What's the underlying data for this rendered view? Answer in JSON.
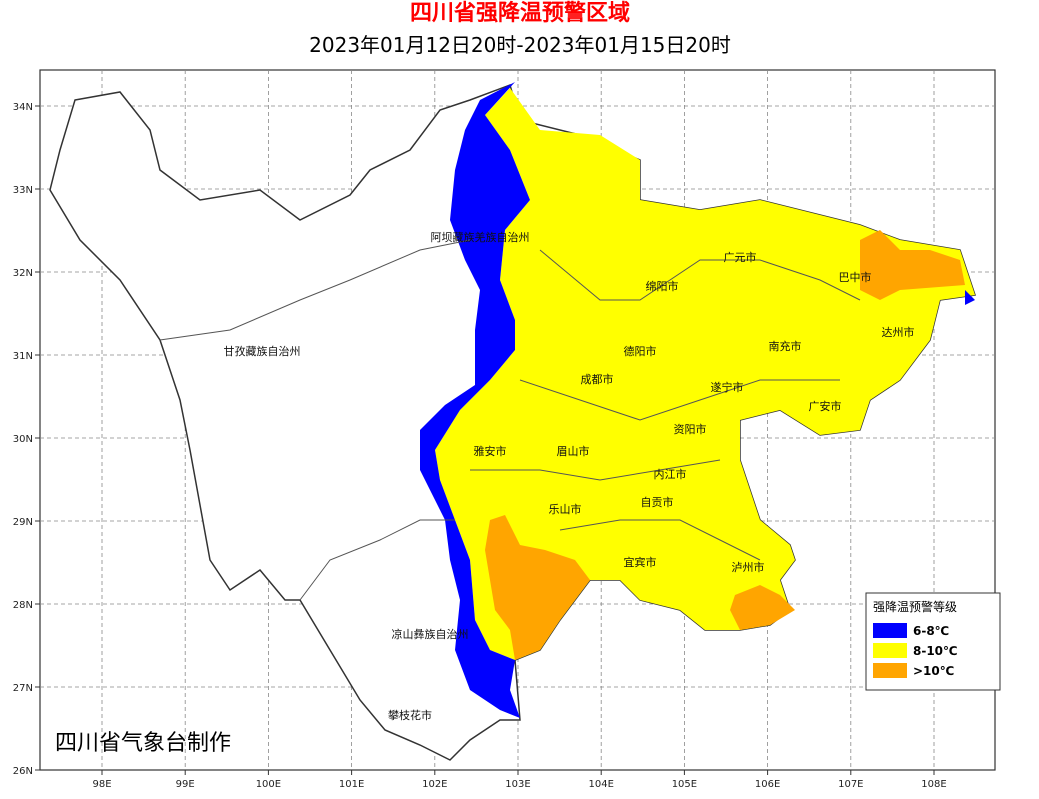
{
  "title": "四川省强降温预警区域",
  "subtitle": "2023年01月12日20时-2023年01月15日20时",
  "axes": {
    "x_labels": [
      "98E",
      "99E",
      "100E",
      "101E",
      "102E",
      "103E",
      "104E",
      "105E",
      "106E",
      "107E",
      "108E"
    ],
    "y_labels": [
      "26N",
      "27N",
      "28N",
      "29N",
      "30N",
      "31N",
      "32N",
      "33N",
      "34N"
    ]
  },
  "places": [
    "阿坝藏族羌族自治州",
    "甘孜藏族自治州",
    "凉山彝族自治州",
    "攀枝花市",
    "雅安市",
    "眉山市",
    "成都市",
    "德阳市",
    "绵阳市",
    "广元市",
    "巴中市",
    "达州市",
    "南充市",
    "遂宁市",
    "广安市",
    "资阳市",
    "内江市",
    "自贡市",
    "乐山市",
    "宜宾市",
    "泸州市"
  ],
  "legend": {
    "title": "强降温预警等级",
    "items": [
      {
        "label": "6-8℃",
        "color": "#0000ff"
      },
      {
        "label": "8-10℃",
        "color": "#ffff00"
      },
      {
        "label": ">10℃",
        "color": "#ffa500"
      }
    ]
  },
  "credit": "四川省气象台制作"
}
